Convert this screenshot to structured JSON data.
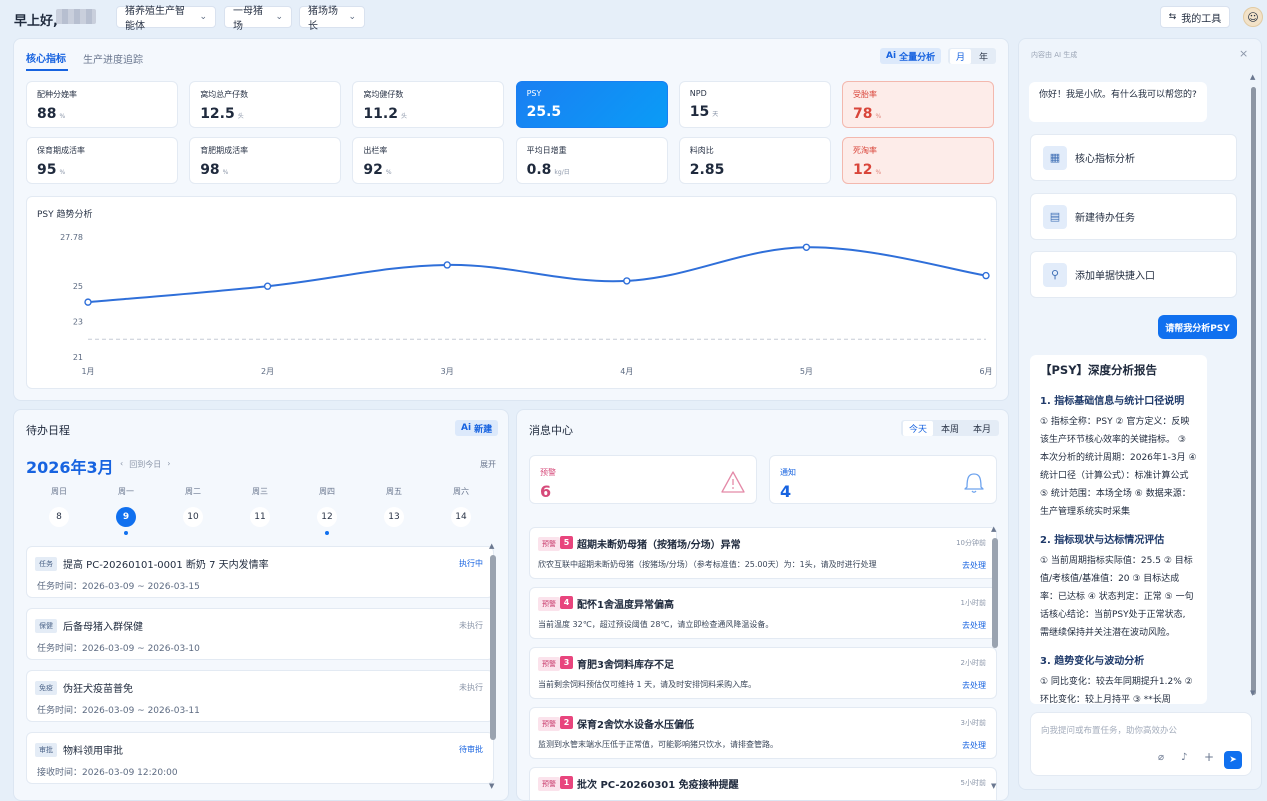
{
  "header": {
    "greeting": "早上好,",
    "dropdowns": [
      "猪养殖生产智能体",
      "一母猪场",
      "猪场场长"
    ],
    "tools_label": "我的工具"
  },
  "core": {
    "tabs": [
      "核心指标",
      "生产进度追踪"
    ],
    "ai_label": "全量分析",
    "period": [
      "月",
      "年"
    ],
    "kpis": [
      {
        "label": "配种分娩率",
        "value": "88",
        "unit": "%"
      },
      {
        "label": "窝均总产仔数",
        "value": "12.5",
        "unit": "头"
      },
      {
        "label": "窝均健仔数",
        "value": "11.2",
        "unit": "头"
      },
      {
        "label": "PSY",
        "value": "25.5",
        "unit": ""
      },
      {
        "label": "NPD",
        "value": "15",
        "unit": "天"
      },
      {
        "label": "受胎率",
        "value": "78",
        "unit": "%"
      },
      {
        "label": "保育期成活率",
        "value": "95",
        "unit": "%"
      },
      {
        "label": "育肥期成活率",
        "value": "98",
        "unit": "%"
      },
      {
        "label": "出栏率",
        "value": "92",
        "unit": "%"
      },
      {
        "label": "平均日增重",
        "value": "0.8",
        "unit": "kg/日"
      },
      {
        "label": "料肉比",
        "value": "2.85",
        "unit": ""
      },
      {
        "label": "死淘率",
        "value": "12",
        "unit": "%"
      }
    ]
  },
  "chart_data": {
    "type": "line",
    "title": "PSY 趋势分析",
    "categories": [
      "1月",
      "2月",
      "3月",
      "4月",
      "5月",
      "6月"
    ],
    "series": [
      {
        "values": [
          24.1,
          25.0,
          26.2,
          25.3,
          27.2,
          25.6
        ]
      }
    ],
    "y_ticks": [
      "27.78",
      "25",
      "23",
      "21"
    ],
    "ylim": [
      21,
      27.78
    ],
    "reference_line": 22.0,
    "color": "#2f6fd9"
  },
  "schedule": {
    "title": "待办日程",
    "new_label": "新建",
    "month": "2026年3月",
    "back_today": "回到今日",
    "expand": "展开",
    "days": [
      {
        "name": "周日",
        "date": "8",
        "dot": false
      },
      {
        "name": "周一",
        "date": "9",
        "dot": true
      },
      {
        "name": "周二",
        "date": "10",
        "dot": false
      },
      {
        "name": "周三",
        "date": "11",
        "dot": false
      },
      {
        "name": "周四",
        "date": "12",
        "dot": true
      },
      {
        "name": "周五",
        "date": "13",
        "dot": false
      },
      {
        "name": "周六",
        "date": "14",
        "dot": false
      }
    ],
    "tasks": [
      {
        "tag": "任务",
        "title": "提高 PC-20260101-0001 断奶 7 天内发情率",
        "status": "执行中",
        "time": "任务时间：2026-03-09 ~ 2026-03-15"
      },
      {
        "tag": "保健",
        "title": "后备母猪入群保健",
        "status": "未执行",
        "time": "任务时间：2026-03-09 ~ 2026-03-10"
      },
      {
        "tag": "免疫",
        "title": "伪狂犬疫苗普免",
        "status": "未执行",
        "time": "任务时间：2026-03-09 ~ 2026-03-11"
      },
      {
        "tag": "审批",
        "title": "物料领用审批",
        "status": "待审批",
        "time": "接收时间：2026-03-09 12:20:00"
      }
    ]
  },
  "messages": {
    "title": "消息中心",
    "filters": [
      "今天",
      "本周",
      "本月"
    ],
    "warn_label": "预警",
    "warn_count": "6",
    "notice_label": "通知",
    "notice_count": "4",
    "items": [
      {
        "tag": "预警",
        "n": "5",
        "title": "超期未断奶母猪（按猪场/分场）异常",
        "time": "10分钟前",
        "desc": "欣农互联中超期未断奶母猪（按猪场/分场）（参考标准值：25.00天）为：1头，请及时进行处理",
        "action": "去处理"
      },
      {
        "tag": "预警",
        "n": "4",
        "title": "配怀1舍温度异常偏高",
        "time": "1小时前",
        "desc": "当前温度 32℃，超过预设阈值 28℃，请立即检查通风降温设备。",
        "action": "去处理"
      },
      {
        "tag": "预警",
        "n": "3",
        "title": "育肥3舍饲料库存不足",
        "time": "2小时前",
        "desc": "当前剩余饲料预估仅可维持 1 天，请及时安排饲料采购入库。",
        "action": "去处理"
      },
      {
        "tag": "预警",
        "n": "2",
        "title": "保育2舍饮水设备水压偏低",
        "time": "3小时前",
        "desc": "监测到水管末端水压低于正常值，可能影响猪只饮水，请排查管路。",
        "action": "去处理"
      },
      {
        "tag": "预警",
        "n": "1",
        "title": "批次 PC-20260301 免疫接种提醒",
        "time": "5小时前",
        "desc": "",
        "action": ""
      }
    ]
  },
  "ai": {
    "caption": "内容由 AI 生成",
    "hello": "你好！我是小欣。有什么我可以帮您的?",
    "quick": [
      "核心指标分析",
      "新建待办任务",
      "添加单据快捷入口"
    ],
    "user_msg": "请帮我分析PSY",
    "report_title": "【PSY】深度分析报告",
    "s1": "1. 指标基础信息与统计口径说明",
    "s1_lines": [
      "① 指标全称：PSY ② 官方定义：反映",
      "该生产环节核心效率的关键指标。 ③",
      "本次分析的统计周期：2026年1-3月 ④",
      "统计口径（计算公式）：标准计算公式",
      "⑤ 统计范围：本场全场 ⑥ 数据来源：",
      "生产管理系统实时采集"
    ],
    "s2": "2. 指标现状与达标情况评估",
    "s2_lines": [
      "① 当前周期指标实际值：25.5 ② 目标",
      "值/考核值/基准值：20 ③ 目标达成",
      "率：已达标 ④ 状态判定：正常 ⑤ 一句",
      "话核心结论：当前PSY处于正常状态,",
      "需继续保持并关注潜在波动风险。"
    ],
    "s3": "3. 趋势变化与波动分析",
    "s3_lines": [
      "① 同比变化：较去年同期提升1.2% ②",
      "环比变化：较上月持平 ③ **长周"
    ],
    "input_placeholder": "向我提问或布置任务，助你高效办公"
  }
}
